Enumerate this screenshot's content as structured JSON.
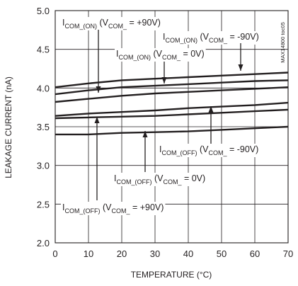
{
  "chart_data": {
    "type": "line",
    "title": "",
    "xlabel": "TEMPERATURE (°C)",
    "ylabel": "LEAKAGE CURRENT (nA)",
    "xlim": [
      0,
      70
    ],
    "ylim": [
      2.0,
      5.0
    ],
    "xticks": [
      "0",
      "10",
      "20",
      "30",
      "40",
      "50",
      "60",
      "70"
    ],
    "yticks": [
      "2.0",
      "2.5",
      "3.0",
      "3.5",
      "4.0",
      "4.5",
      "5.0"
    ],
    "grid": true,
    "code": "MAX14800 toc05",
    "x": [
      0,
      10,
      20,
      30,
      40,
      50,
      60,
      70
    ],
    "series": [
      {
        "name": "ICOM_(ON) (VCOM_ = -90V)",
        "values": [
          4.01,
          4.06,
          4.1,
          4.12,
          4.14,
          4.16,
          4.18,
          4.2
        ]
      },
      {
        "name": "ICOM_(ON) (VCOM_ = 0V)",
        "values": [
          3.92,
          3.97,
          4.01,
          4.03,
          4.05,
          4.07,
          4.09,
          4.1
        ]
      },
      {
        "name": "ICOM_(ON) (VCOM_ = +90V)",
        "values": [
          3.82,
          3.86,
          3.9,
          3.93,
          3.95,
          3.97,
          3.99,
          4.01
        ]
      },
      {
        "name": "ICOM_(OFF) (VCOM_ = -90V)",
        "values": [
          3.64,
          3.67,
          3.69,
          3.71,
          3.74,
          3.76,
          3.78,
          3.81
        ]
      },
      {
        "name": "ICOM_(OFF) (VCOM_ = 0V)",
        "values": [
          3.61,
          3.62,
          3.63,
          3.64,
          3.66,
          3.68,
          3.7,
          3.72
        ]
      },
      {
        "name": "ICOM_(OFF) (VCOM_ = +90V)",
        "values": [
          3.4,
          3.4,
          3.42,
          3.43,
          3.44,
          3.46,
          3.48,
          3.5
        ]
      }
    ],
    "annotations": [
      {
        "main": "I",
        "sub": "COM_(ON)",
        "mid": " (V",
        "sub2": "COM_",
        "tail": " = +90V)"
      },
      {
        "main": "I",
        "sub": "COM_(ON)",
        "mid": " (V",
        "sub2": "COM_",
        "tail": " = -90V)"
      },
      {
        "main": "I",
        "sub": "COM_(ON)",
        "mid": " (V",
        "sub2": "COM_",
        "tail": " = 0V)"
      },
      {
        "main": "I",
        "sub": "COM_(OFF)",
        "mid": " (V",
        "sub2": "COM_",
        "tail": " = -90V)"
      },
      {
        "main": "I",
        "sub": "COM_(OFF)",
        "mid": " (V",
        "sub2": "COM_",
        "tail": " = 0V)"
      },
      {
        "main": "I",
        "sub": "COM_(OFF)",
        "mid": " (V",
        "sub2": "COM_",
        "tail": " = +90V)"
      }
    ]
  }
}
